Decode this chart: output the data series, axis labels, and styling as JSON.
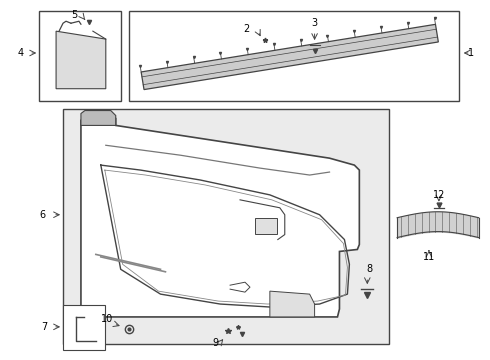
{
  "bg_color": "#ffffff",
  "line_color": "#444444",
  "fig_width": 4.9,
  "fig_height": 3.6,
  "dpi": 100,
  "panel_bg": "#e8e8e8",
  "panel_fill": "#ffffff",
  "part_gray": "#aaaaaa"
}
